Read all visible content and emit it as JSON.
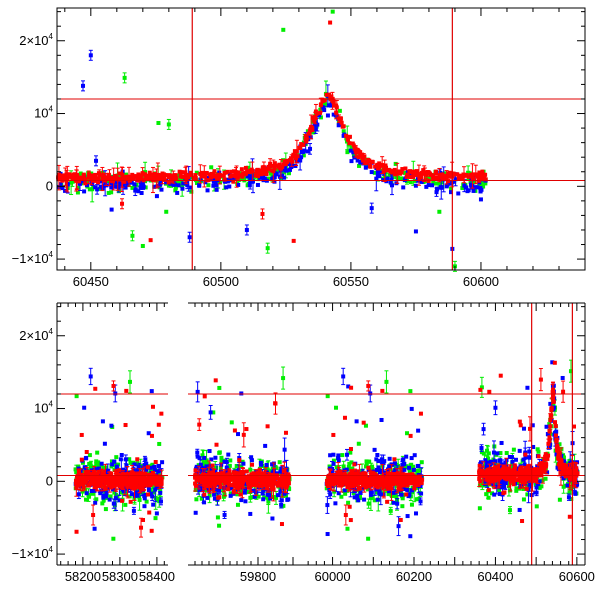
{
  "colors": {
    "red": "#ff0000",
    "green": "#00ee00",
    "blue": "#0000ff",
    "ref_line": "#e00000",
    "axis": "#000000"
  },
  "chart_data": [
    {
      "type": "scatter",
      "panel": "top",
      "title": "",
      "xlabel": "",
      "ylabel": "",
      "xlim": [
        60437,
        60640
      ],
      "ylim": [
        -11500,
        24500
      ],
      "x_ticks": [
        {
          "value": 60450,
          "label": "60450"
        },
        {
          "value": 60500,
          "label": "60500"
        },
        {
          "value": 60550,
          "label": "60550"
        },
        {
          "value": 60600,
          "label": "60600"
        }
      ],
      "y_ticks": [
        {
          "value": -10000,
          "base": "−1×10",
          "exp": "4"
        },
        {
          "value": 0,
          "base": "0",
          "exp": ""
        },
        {
          "value": 10000,
          "base": "10",
          "exp": "4"
        },
        {
          "value": 20000,
          "base": "2×10",
          "exp": "4"
        }
      ],
      "ref_lines": {
        "horizontal": [
          12000,
          800
        ],
        "vertical": [
          60489,
          60589
        ]
      },
      "light_curve": {
        "x_start": 60437,
        "x_end": 60602,
        "peak_x": 60541,
        "peak_y": 12000,
        "width_days": 8,
        "baseline": 800
      },
      "outliers": [
        {
          "x": 60450,
          "y": 18000,
          "color": "blue"
        },
        {
          "x": 60447,
          "y": 13800,
          "color": "blue"
        },
        {
          "x": 60463,
          "y": 14900,
          "color": "green"
        },
        {
          "x": 60476,
          "y": 8700,
          "color": "green"
        },
        {
          "x": 60480,
          "y": 8500,
          "color": "green"
        },
        {
          "x": 60524,
          "y": 21500,
          "color": "green"
        },
        {
          "x": 60542,
          "y": 22500,
          "color": "red"
        },
        {
          "x": 60543,
          "y": 24000,
          "color": "green"
        },
        {
          "x": 60452,
          "y": 3500,
          "color": "blue"
        },
        {
          "x": 60458,
          "y": -3200,
          "color": "blue"
        },
        {
          "x": 60466,
          "y": -6800,
          "color": "green"
        },
        {
          "x": 60470,
          "y": -8200,
          "color": "green"
        },
        {
          "x": 60473,
          "y": -7400,
          "color": "red"
        },
        {
          "x": 60479,
          "y": -3500,
          "color": "green"
        },
        {
          "x": 60488,
          "y": -7000,
          "color": "blue"
        },
        {
          "x": 60510,
          "y": -6000,
          "color": "blue"
        },
        {
          "x": 60516,
          "y": -3800,
          "color": "red"
        },
        {
          "x": 60528,
          "y": -7500,
          "color": "red"
        },
        {
          "x": 60558,
          "y": -3000,
          "color": "blue"
        },
        {
          "x": 60575,
          "y": -6200,
          "color": "blue"
        },
        {
          "x": 60584,
          "y": -3500,
          "color": "green"
        },
        {
          "x": 60589,
          "y": -8600,
          "color": "blue"
        },
        {
          "x": 60590,
          "y": -11000,
          "color": "green"
        },
        {
          "x": 60600,
          "y": -1800,
          "color": "blue"
        },
        {
          "x": 60462,
          "y": -2400,
          "color": "red"
        },
        {
          "x": 60518,
          "y": -8500,
          "color": "green"
        }
      ]
    },
    {
      "type": "scatter",
      "panel": "bottom",
      "title": "",
      "xlabel": "",
      "ylabel": "",
      "broken_axis": true,
      "segments": [
        {
          "xlim": [
            58130,
            58430
          ],
          "season": {
            "start": 58180,
            "end": 58415
          },
          "x_ticks": [
            {
              "value": 58200,
              "label": "58200"
            },
            {
              "value": 58300,
              "label": "58300"
            },
            {
              "value": 58400,
              "label": "58400"
            }
          ]
        },
        {
          "xlim": [
            59600,
            59920
          ],
          "season": {
            "start": 59620,
            "end": 59890
          },
          "x_ticks": [
            {
              "value": 59800,
              "label": "59800"
            }
          ]
        },
        {
          "xlim": [
            59920,
            60620
          ],
          "season": {
            "start": 59985,
            "end": 60220
          },
          "second_season": {
            "start": 60360,
            "end": 60602
          },
          "x_ticks": [
            {
              "value": 60000,
              "label": "60000"
            },
            {
              "value": 60200,
              "label": "60200"
            },
            {
              "value": 60400,
              "label": "60400"
            },
            {
              "value": 60600,
              "label": "60600"
            }
          ]
        }
      ],
      "ylim": [
        -11500,
        24500
      ],
      "y_ticks": [
        {
          "value": -10000,
          "base": "−1×10",
          "exp": "4"
        },
        {
          "value": 0,
          "base": "0",
          "exp": ""
        },
        {
          "value": 10000,
          "base": "10",
          "exp": "4"
        },
        {
          "value": 20000,
          "base": "2×10",
          "exp": "4"
        }
      ],
      "ref_lines": {
        "horizontal": [
          12000,
          800
        ],
        "vertical": [
          60489,
          60589
        ]
      },
      "light_curve": {
        "peak_x": 60541,
        "peak_y": 12000,
        "width_days": 8,
        "baseline": 800
      }
    }
  ]
}
